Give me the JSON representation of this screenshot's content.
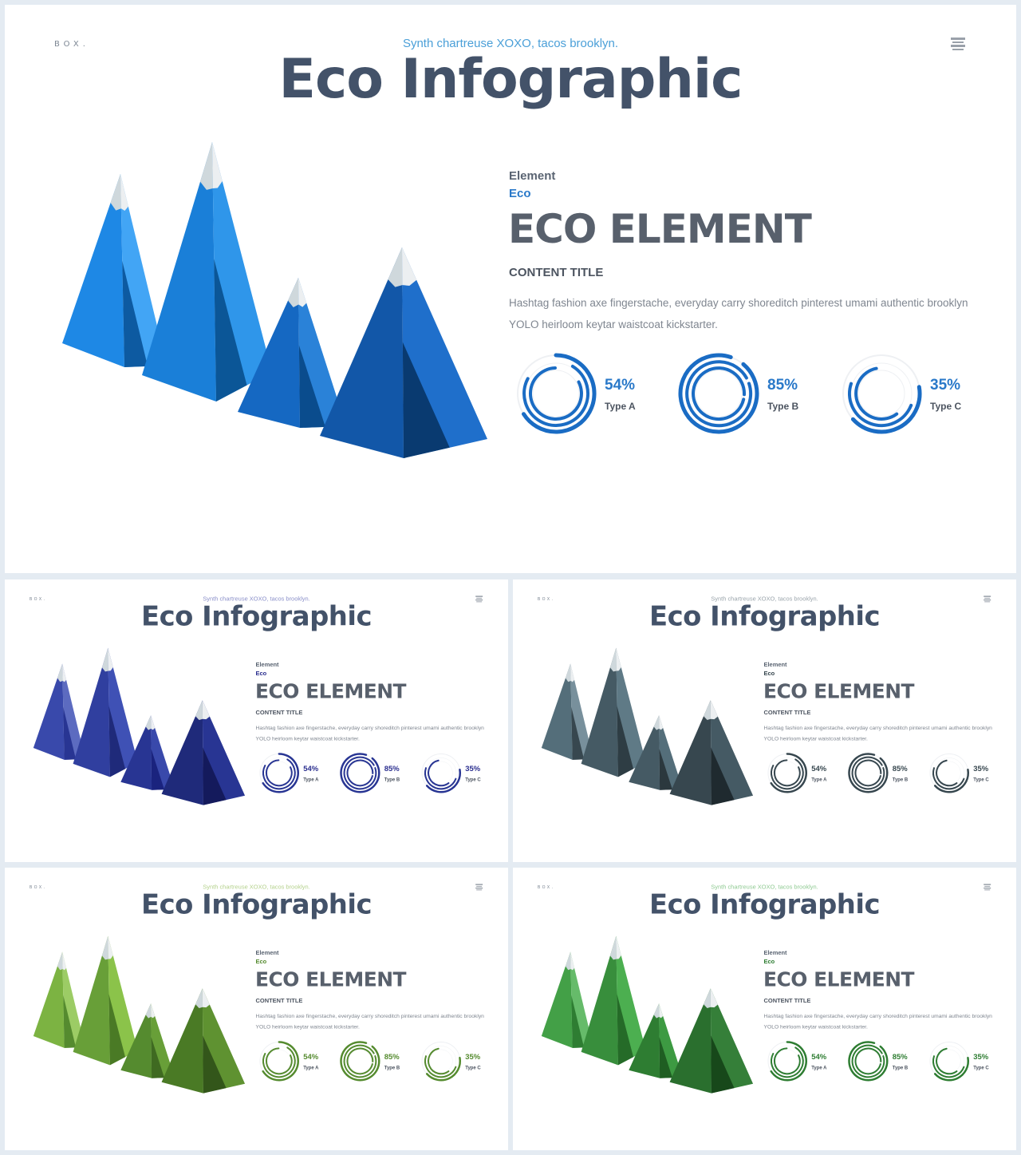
{
  "slide": {
    "brand": "BOX.",
    "subtitle": "Synth chartreuse XOXO, tacos brooklyn.",
    "title": "Eco Infographic",
    "element_label": "Element",
    "eco_label": "Eco",
    "heading": "ECO ELEMENT",
    "content_title": "CONTENT TITLE",
    "body": "Hashtag fashion axe fingerstache, everyday carry shoreditch pinterest umami authentic brooklyn YOLO heirloom keytar waistcoat kickstarter.",
    "stats": [
      {
        "percent": "54%",
        "type": "Type A",
        "value": 0.54
      },
      {
        "percent": "85%",
        "type": "Type B",
        "value": 0.85
      },
      {
        "percent": "35%",
        "type": "Type C",
        "value": 0.35
      }
    ]
  },
  "themes": [
    {
      "name": "blue",
      "accent": "#2a79c9",
      "subtitle": "#4a9fd8",
      "faces": [
        [
          "#1e88e5",
          "#42a5f5",
          "#0d5aa1"
        ],
        [
          "#1a7fd8",
          "#2f96ea",
          "#0b5697"
        ],
        [
          "#1568c2",
          "#2a82d8",
          "#0a4c8d"
        ],
        [
          "#1257a8",
          "#1f6fcb",
          "#093a70"
        ]
      ],
      "ring": "#1a6cc4"
    },
    {
      "name": "indigo",
      "accent": "#2b2f8f",
      "subtitle": "#8a8fc9",
      "faces": [
        [
          "#3949ab",
          "#5c6bc0",
          "#283593"
        ],
        [
          "#303f9f",
          "#3f51b5",
          "#1f2a7a"
        ],
        [
          "#283593",
          "#3949ab",
          "#1a237e"
        ],
        [
          "#1f2a7a",
          "#283593",
          "#141a5c"
        ]
      ],
      "ring": "#283593"
    },
    {
      "name": "slate",
      "accent": "#37474f",
      "subtitle": "#9aa4ab",
      "faces": [
        [
          "#546e7a",
          "#78909c",
          "#37474f"
        ],
        [
          "#455a64",
          "#5f7a86",
          "#2e3d44"
        ],
        [
          "#455a64",
          "#546e7a",
          "#2b383e"
        ],
        [
          "#37474f",
          "#455a64",
          "#1f2a2f"
        ]
      ],
      "ring": "#37474f"
    },
    {
      "name": "lime",
      "accent": "#558b2f",
      "subtitle": "#b4d18c",
      "faces": [
        [
          "#7cb342",
          "#9ccc65",
          "#558b2f"
        ],
        [
          "#689f38",
          "#8bc34a",
          "#4a7a25"
        ],
        [
          "#558b2f",
          "#689f38",
          "#3f6a21"
        ],
        [
          "#4a7a25",
          "#5f9231",
          "#33561a"
        ]
      ],
      "ring": "#558b2f"
    },
    {
      "name": "green",
      "accent": "#2e7d32",
      "subtitle": "#8fca92",
      "faces": [
        [
          "#43a047",
          "#66bb6a",
          "#2e7d32"
        ],
        [
          "#388e3c",
          "#4caf50",
          "#256b28"
        ],
        [
          "#2e7d32",
          "#3d9a42",
          "#1f5e22"
        ],
        [
          "#2a6f2e",
          "#357f39",
          "#17481a"
        ]
      ],
      "ring": "#2e7d32"
    }
  ]
}
